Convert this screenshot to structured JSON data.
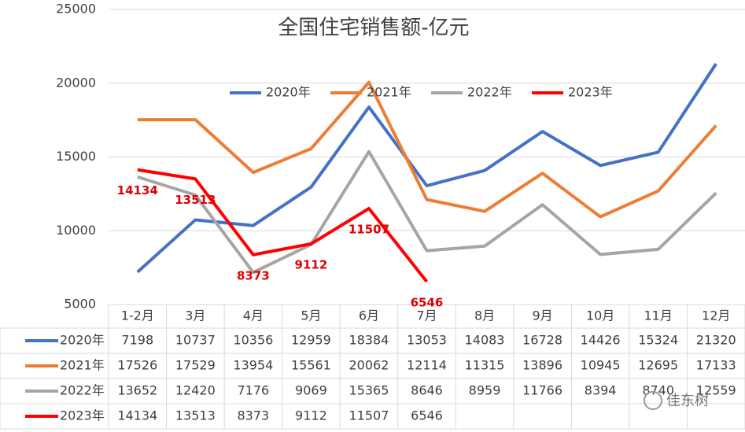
{
  "chart_data": {
    "type": "line",
    "title": "全国住宅销售额-亿元",
    "categories": [
      "1-2月",
      "3月",
      "4月",
      "5月",
      "6月",
      "7月",
      "8月",
      "9月",
      "10月",
      "11月",
      "12月"
    ],
    "series": [
      {
        "name": "2020年",
        "color": "#4472c4",
        "values": [
          7198,
          10737,
          10356,
          12959,
          18384,
          13053,
          14083,
          16728,
          14426,
          15324,
          21320
        ]
      },
      {
        "name": "2021年",
        "color": "#ed7d31",
        "values": [
          17526,
          17529,
          13954,
          15561,
          20062,
          12114,
          11315,
          13896,
          10945,
          12695,
          17133
        ]
      },
      {
        "name": "2022年",
        "color": "#a5a5a5",
        "values": [
          13652,
          12420,
          7176,
          9069,
          15365,
          8646,
          8959,
          11766,
          8394,
          8740,
          12559
        ]
      },
      {
        "name": "2023年",
        "color": "#ff0000",
        "values": [
          14134,
          13513,
          8373,
          9112,
          11507,
          6546,
          null,
          null,
          null,
          null,
          null
        ],
        "data_labels": true
      }
    ],
    "ylim": [
      5000,
      25000
    ],
    "yticks": [
      5000,
      10000,
      15000,
      20000,
      25000
    ],
    "grid": true,
    "legend": "top",
    "data_table": true,
    "watermark": "佳东树"
  }
}
